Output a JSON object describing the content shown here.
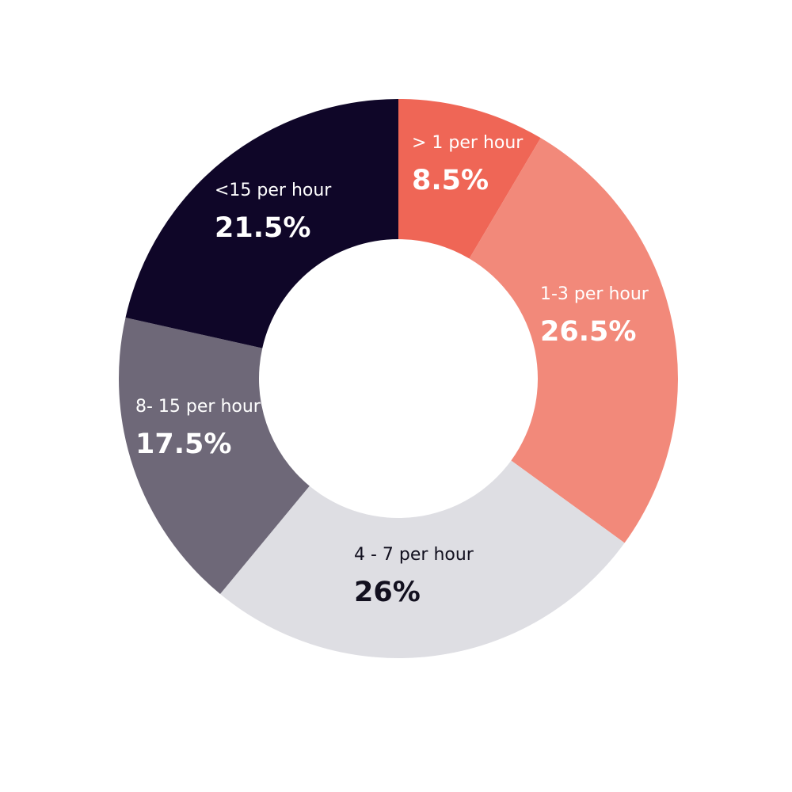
{
  "chart_data": {
    "type": "pie",
    "variant": "donut",
    "title": "",
    "legend": "none (labels drawn on slices)",
    "slices": [
      {
        "label": "> 1 per hour",
        "value": 8.5,
        "value_label": "8.5%",
        "color": "#EF6656",
        "text_color": "#ffffff"
      },
      {
        "label": "1-3 per hour",
        "value": 26.5,
        "value_label": "26.5%",
        "color": "#F2897A",
        "text_color": "#ffffff"
      },
      {
        "label": "4 - 7 per hour",
        "value": 26,
        "value_label": "26%",
        "color": "#DEDEE3",
        "text_color": "#12101F"
      },
      {
        "label": "8- 15 per hour",
        "value": 17.5,
        "value_label": "17.5%",
        "color": "#6E6878",
        "text_color": "#ffffff"
      },
      {
        "label": "<15 per hour",
        "value": 21.5,
        "value_label": "21.5%",
        "color": "#0F0628",
        "text_color": "#ffffff"
      }
    ]
  }
}
